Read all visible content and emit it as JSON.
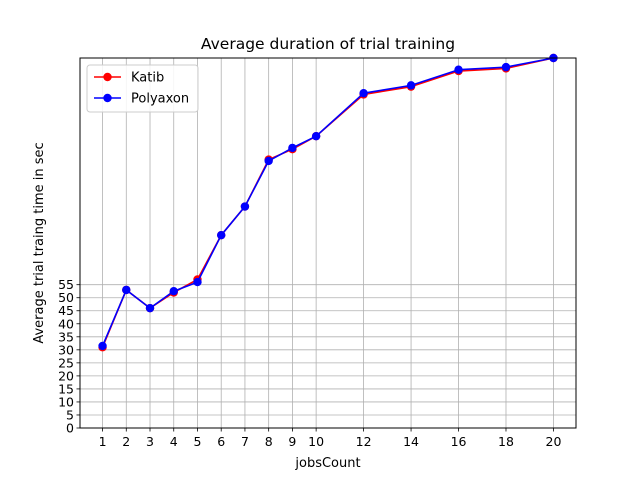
{
  "chart_data": {
    "type": "line",
    "title": "Average duration of trial training",
    "xlabel": "jobsCount",
    "ylabel": "Average trial traing time in sec",
    "x": [
      1,
      2,
      3,
      4,
      5,
      6,
      7,
      8,
      9,
      10,
      12,
      14,
      16,
      18,
      20
    ],
    "xticks": [
      "1",
      "2",
      "3",
      "4",
      "5",
      "6",
      "7",
      "8",
      "9",
      "10",
      "12",
      "14",
      "16",
      "18",
      "20"
    ],
    "yticks": [
      "0",
      "5",
      "10",
      "15",
      "20",
      "25",
      "30",
      "35",
      "40",
      "45",
      "50",
      "55"
    ],
    "xlim": [
      0.05,
      20.95
    ],
    "ylim": [
      0,
      142
    ],
    "grid": true,
    "legend_position": "top-left",
    "series": [
      {
        "name": "Katib",
        "color": "#ff0000",
        "marker": "circle",
        "values": [
          31,
          53,
          46,
          52,
          57,
          74,
          85,
          103,
          107,
          112,
          128,
          131,
          137,
          138,
          142
        ]
      },
      {
        "name": "Polyaxon",
        "color": "#0000ff",
        "marker": "circle",
        "values": [
          31.5,
          53,
          46,
          52.5,
          56,
          74,
          85,
          102.5,
          107.5,
          112,
          128.5,
          131.5,
          137.5,
          138.5,
          142
        ]
      }
    ]
  }
}
